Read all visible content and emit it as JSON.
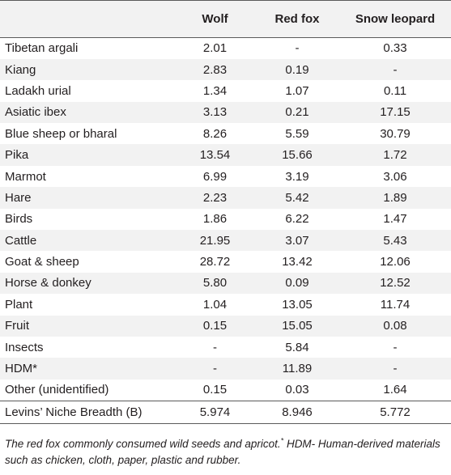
{
  "table": {
    "columns": [
      "",
      "Wolf",
      "Red fox",
      "Snow leopard"
    ],
    "rows": [
      {
        "name": "Tibetan argali",
        "wolf": "2.01",
        "fox": "-",
        "leopard": "0.33"
      },
      {
        "name": "Kiang",
        "wolf": "2.83",
        "fox": "0.19",
        "leopard": "-"
      },
      {
        "name": "Ladakh urial",
        "wolf": "1.34",
        "fox": "1.07",
        "leopard": "0.11"
      },
      {
        "name": "Asiatic ibex",
        "wolf": "3.13",
        "fox": "0.21",
        "leopard": "17.15"
      },
      {
        "name": "Blue sheep or bharal",
        "wolf": "8.26",
        "fox": "5.59",
        "leopard": "30.79"
      },
      {
        "name": "Pika",
        "wolf": "13.54",
        "fox": "15.66",
        "leopard": "1.72"
      },
      {
        "name": "Marmot",
        "wolf": "6.99",
        "fox": "3.19",
        "leopard": "3.06"
      },
      {
        "name": "Hare",
        "wolf": "2.23",
        "fox": "5.42",
        "leopard": "1.89"
      },
      {
        "name": "Birds",
        "wolf": "1.86",
        "fox": "6.22",
        "leopard": "1.47"
      },
      {
        "name": "Cattle",
        "wolf": "21.95",
        "fox": "3.07",
        "leopard": "5.43"
      },
      {
        "name": "Goat & sheep",
        "wolf": "28.72",
        "fox": "13.42",
        "leopard": "12.06"
      },
      {
        "name": "Horse & donkey",
        "wolf": "5.80",
        "fox": "0.09",
        "leopard": "12.52"
      },
      {
        "name": "Plant",
        "wolf": "1.04",
        "fox": "13.05",
        "leopard": "11.74"
      },
      {
        "name": "Fruit",
        "wolf": "0.15",
        "fox": "15.05",
        "leopard": "0.08"
      },
      {
        "name": "Insects",
        "wolf": "-",
        "fox": "5.84",
        "leopard": "-"
      },
      {
        "name": "HDM*",
        "wolf": "-",
        "fox": "11.89",
        "leopard": "-"
      },
      {
        "name": "Other (unidentified)",
        "wolf": "0.15",
        "fox": "0.03",
        "leopard": "1.64"
      }
    ],
    "summary": {
      "name": "Levins’ Niche Breadth (B)",
      "wolf": "5.974",
      "fox": "8.946",
      "leopard": "5.772"
    }
  },
  "footnote": {
    "part1": "The red fox commonly consumed wild seeds and apricot.",
    "marker": "*",
    "part2": " HDM- Human-derived materials such as chicken, cloth, paper, plastic and rubber."
  },
  "colors": {
    "shade": "#f2f2f2",
    "rule": "#5a5a5a",
    "text": "#231f20"
  }
}
